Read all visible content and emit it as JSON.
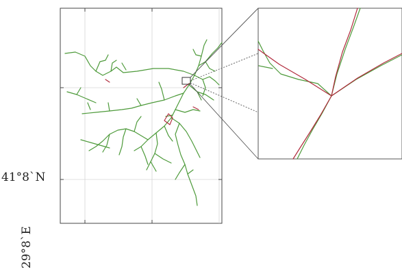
{
  "graticule_labels": {
    "latitude": "41°8`N",
    "longitude": "29°8`E"
  },
  "colors": {
    "road_primary": "#4d9a3a",
    "road_secondary": "#b0283a",
    "frame": "#333333",
    "grid": "#d0d0d0",
    "leader_lines": "#555555"
  }
}
